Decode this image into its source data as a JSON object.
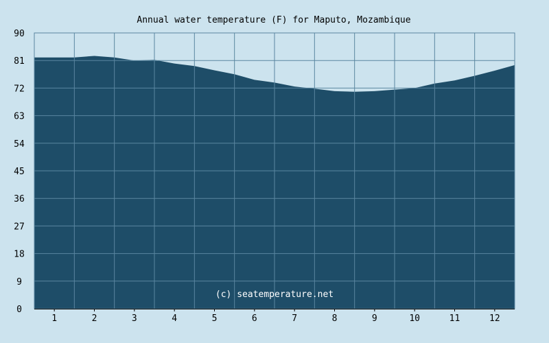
{
  "chart_data": {
    "type": "area",
    "title": "Annual water temperature (F) for Maputo, Mozambique",
    "xlabel": "",
    "ylabel": "",
    "x_ticks": [
      "1",
      "2",
      "3",
      "4",
      "5",
      "6",
      "7",
      "8",
      "9",
      "10",
      "11",
      "12"
    ],
    "y_ticks": [
      0,
      9,
      18,
      27,
      36,
      45,
      54,
      63,
      72,
      81,
      90
    ],
    "xlim": [
      0.5,
      12.5
    ],
    "ylim": [
      0,
      90
    ],
    "grid": true,
    "series": [
      {
        "x": [
          0.5,
          1.0,
          1.5,
          2.0,
          2.5,
          3.0,
          3.5,
          4.0,
          4.5,
          5.0,
          5.5,
          6.0,
          6.5,
          7.0,
          7.5,
          8.0,
          8.5,
          9.0,
          9.5,
          10.0,
          10.5,
          11.0,
          11.5,
          12.0,
          12.5
        ],
        "values": [
          82.0,
          82.0,
          82.0,
          82.5,
          82.0,
          81.0,
          81.2,
          80.0,
          79.2,
          77.8,
          76.5,
          74.7,
          73.8,
          72.5,
          71.8,
          71.0,
          70.8,
          71.0,
          71.5,
          72.0,
          73.5,
          74.5,
          76.0,
          77.7,
          79.5
        ]
      }
    ],
    "watermark": "(c) seatemperature.net",
    "colors": {
      "background": "#cce3ee",
      "plot_background": "#cce3ee",
      "area_fill": "#1e4d68",
      "grid": "#5a86a0",
      "axis": "#000000"
    }
  }
}
